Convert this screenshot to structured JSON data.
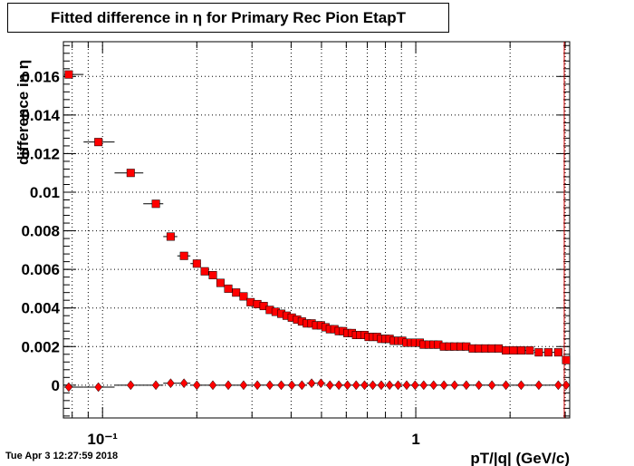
{
  "canvas": {
    "title": "Fitted difference in  η for Primary Rec Pion EtapT",
    "timestamp": "Tue Apr  3 12:27:59 2018"
  },
  "chart_data": {
    "type": "scatter",
    "title": "Fitted difference in  η for Primary Rec Pion EtapT",
    "xlabel": "pT/|q| (GeV/c)",
    "ylabel": "difference in  η",
    "x_scale": "log",
    "xlim": [
      0.075,
      3.1
    ],
    "ylim": [
      -0.0017,
      0.0178
    ],
    "grid": true,
    "x_major_ticks": [
      {
        "value": 0.1,
        "label": "10⁻¹"
      },
      {
        "value": 1,
        "label": "1"
      }
    ],
    "y_ticks": [
      {
        "value": 0,
        "label": "0"
      },
      {
        "value": 0.002,
        "label": "0.002"
      },
      {
        "value": 0.004,
        "label": "0.004"
      },
      {
        "value": 0.006,
        "label": "0.006"
      },
      {
        "value": 0.008,
        "label": "0.008"
      },
      {
        "value": 0.01,
        "label": "0.01"
      },
      {
        "value": 0.012,
        "label": "0.012"
      },
      {
        "value": 0.014,
        "label": "0.014"
      },
      {
        "value": 0.016,
        "label": "0.016"
      }
    ],
    "series": [
      {
        "marker": "square",
        "color": "#ff0000",
        "edge_color": "#000000",
        "points": [
          [
            0.078,
            0.0161
          ],
          [
            0.097,
            0.0126
          ],
          [
            0.123,
            0.011
          ],
          [
            0.148,
            0.0094
          ],
          [
            0.165,
            0.0077
          ],
          [
            0.182,
            0.0067
          ],
          [
            0.2,
            0.0063
          ],
          [
            0.212,
            0.0059
          ],
          [
            0.225,
            0.0057
          ],
          [
            0.238,
            0.0053
          ],
          [
            0.252,
            0.005
          ],
          [
            0.267,
            0.0048
          ],
          [
            0.282,
            0.0046
          ],
          [
            0.297,
            0.0043
          ],
          [
            0.312,
            0.0042
          ],
          [
            0.327,
            0.0041
          ],
          [
            0.342,
            0.0039
          ],
          [
            0.357,
            0.0038
          ],
          [
            0.372,
            0.0037
          ],
          [
            0.387,
            0.0036
          ],
          [
            0.402,
            0.0035
          ],
          [
            0.418,
            0.0034
          ],
          [
            0.433,
            0.0033
          ],
          [
            0.449,
            0.0032
          ],
          [
            0.465,
            0.0032
          ],
          [
            0.481,
            0.0031
          ],
          [
            0.498,
            0.0031
          ],
          [
            0.515,
            0.003
          ],
          [
            0.532,
            0.0029
          ],
          [
            0.55,
            0.0029
          ],
          [
            0.568,
            0.0028
          ],
          [
            0.586,
            0.0028
          ],
          [
            0.605,
            0.0027
          ],
          [
            0.625,
            0.0027
          ],
          [
            0.645,
            0.0026
          ],
          [
            0.665,
            0.0026
          ],
          [
            0.686,
            0.0026
          ],
          [
            0.707,
            0.0025
          ],
          [
            0.729,
            0.0025
          ],
          [
            0.752,
            0.0025
          ],
          [
            0.776,
            0.0024
          ],
          [
            0.8,
            0.0024
          ],
          [
            0.825,
            0.0024
          ],
          [
            0.851,
            0.0023
          ],
          [
            0.878,
            0.0023
          ],
          [
            0.905,
            0.0023
          ],
          [
            0.935,
            0.0022
          ],
          [
            0.965,
            0.0022
          ],
          [
            0.995,
            0.0022
          ],
          [
            1.03,
            0.0022
          ],
          [
            1.06,
            0.0021
          ],
          [
            1.1,
            0.0021
          ],
          [
            1.14,
            0.0021
          ],
          [
            1.18,
            0.0021
          ],
          [
            1.23,
            0.002
          ],
          [
            1.28,
            0.002
          ],
          [
            1.33,
            0.002
          ],
          [
            1.39,
            0.002
          ],
          [
            1.45,
            0.002
          ],
          [
            1.52,
            0.0019
          ],
          [
            1.59,
            0.0019
          ],
          [
            1.67,
            0.0019
          ],
          [
            1.75,
            0.0019
          ],
          [
            1.84,
            0.0019
          ],
          [
            1.94,
            0.0018
          ],
          [
            2.05,
            0.0018
          ],
          [
            2.17,
            0.0018
          ],
          [
            2.31,
            0.0018
          ],
          [
            2.47,
            0.0017
          ],
          [
            2.65,
            0.0017
          ],
          [
            2.85,
            0.0017
          ],
          [
            3.02,
            0.0013
          ]
        ]
      },
      {
        "marker": "diamond",
        "color": "#ff0000",
        "edge_color": "#000000",
        "points": [
          [
            0.078,
            -0.0001
          ],
          [
            0.097,
            -0.0001
          ],
          [
            0.123,
            0.0
          ],
          [
            0.148,
            0.0
          ],
          [
            0.165,
            0.0001
          ],
          [
            0.182,
            0.0001
          ],
          [
            0.2,
            0.0
          ],
          [
            0.225,
            0.0
          ],
          [
            0.252,
            0.0
          ],
          [
            0.282,
            0.0
          ],
          [
            0.312,
            0.0
          ],
          [
            0.342,
            0.0
          ],
          [
            0.372,
            0.0
          ],
          [
            0.402,
            0.0
          ],
          [
            0.433,
            0.0
          ],
          [
            0.465,
            0.0001
          ],
          [
            0.498,
            0.0001
          ],
          [
            0.532,
            0.0
          ],
          [
            0.568,
            0.0
          ],
          [
            0.605,
            0.0
          ],
          [
            0.645,
            0.0
          ],
          [
            0.686,
            0.0
          ],
          [
            0.729,
            0.0
          ],
          [
            0.776,
            0.0
          ],
          [
            0.825,
            0.0
          ],
          [
            0.878,
            0.0
          ],
          [
            0.935,
            0.0
          ],
          [
            0.995,
            0.0
          ],
          [
            1.06,
            0.0
          ],
          [
            1.14,
            0.0
          ],
          [
            1.23,
            0.0
          ],
          [
            1.33,
            0.0
          ],
          [
            1.45,
            0.0
          ],
          [
            1.59,
            0.0
          ],
          [
            1.75,
            0.0
          ],
          [
            1.94,
            0.0
          ],
          [
            2.17,
            0.0
          ],
          [
            2.47,
            0.0
          ],
          [
            2.85,
            0.0
          ],
          [
            3.02,
            0.0
          ]
        ]
      }
    ]
  }
}
